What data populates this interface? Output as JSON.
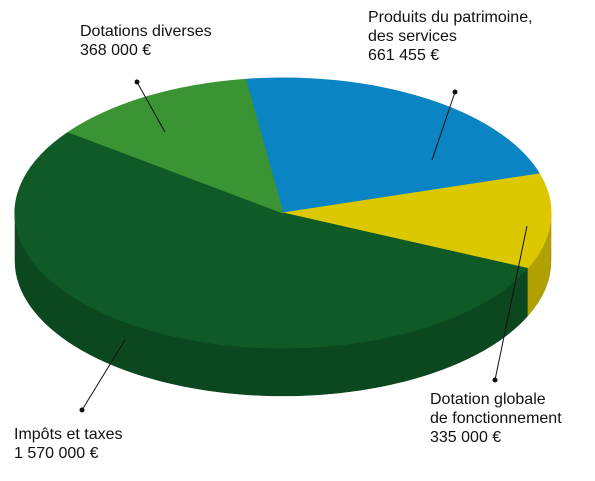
{
  "chart_data": {
    "type": "pie",
    "categories": [
      "Produits du patrimoine,\ndes services",
      "Dotation globale\nde fonctionnement",
      "Impôts et taxes",
      "Dotations diverses"
    ],
    "values": [
      661455,
      335000,
      1570000,
      368000
    ],
    "value_labels": [
      "661 455 €",
      "335 000 €",
      "1 570 000 €",
      "368 000 €"
    ],
    "colors": [
      "#0a84c2",
      "#dcc800",
      "#0f5a27",
      "#3b9433"
    ]
  }
}
